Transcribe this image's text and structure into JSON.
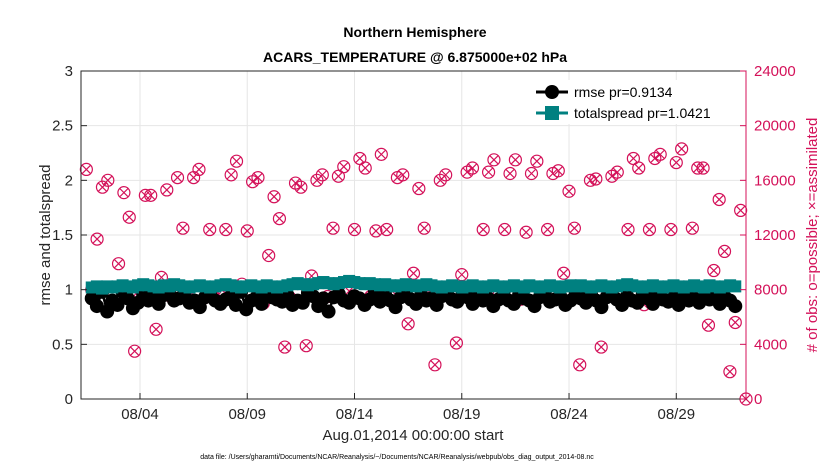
{
  "chart_data": {
    "type": "line",
    "title_line1": "Northern Hemisphere",
    "title_line2": "ACARS_TEMPERATURE @ 6.875000e+02 hPa",
    "xlabel": "Aug.01,2014 00:00:00 start",
    "ylabel_left": "rmse and totalspread",
    "ylabel_right": "# of obs: o=possible; ×=assimilated",
    "footnote": "data file: /Users/gharamti/Documents/NCAR/Reanalysis/~/Documents/NCAR/Reanalysis/webpub/obs_diag_output_2014-08.nc",
    "x_ticks": [
      "08/04",
      "08/09",
      "08/14",
      "08/19",
      "08/24",
      "08/29"
    ],
    "x_tick_days": [
      4,
      9,
      14,
      19,
      24,
      29
    ],
    "xlim": [
      1.25,
      32.25
    ],
    "y_left_ticks": [
      "0",
      "0.5",
      "1",
      "1.5",
      "2",
      "2.5",
      "3"
    ],
    "ylim_left": [
      0,
      3
    ],
    "y_right_ticks": [
      "0",
      "4000",
      "8000",
      "12000",
      "16000",
      "20000",
      "24000"
    ],
    "ylim_right": [
      0,
      24000
    ],
    "legend": [
      {
        "label": "rmse pr=0.9134",
        "color": "#000000",
        "marker": "circle"
      },
      {
        "label": "totalspread pr=1.0421",
        "color": "#008080",
        "marker": "square"
      }
    ],
    "obs_color": "#d41159",
    "series": [
      {
        "name": "rmse",
        "color": "#000000",
        "values": [
          0.92,
          0.85,
          0.98,
          0.8,
          0.9,
          0.86,
          0.98,
          0.92,
          0.83,
          0.88,
          0.95,
          0.9,
          0.93,
          0.87,
          0.95,
          0.97,
          0.9,
          0.92,
          0.96,
          0.88,
          0.9,
          0.84,
          0.93,
          0.95,
          0.9,
          0.87,
          0.91,
          0.94,
          0.86,
          0.98,
          0.82,
          0.9,
          0.93,
          0.87,
          0.97,
          0.93,
          0.91,
          0.89,
          0.95,
          0.86,
          0.9,
          0.88,
          0.97,
          0.94,
          0.85,
          0.92,
          0.8,
          0.93,
          0.96,
          0.9,
          0.88,
          0.94,
          0.92,
          0.86,
          0.91,
          0.99,
          0.89,
          0.95,
          0.9,
          0.84,
          0.93,
          0.97,
          0.91,
          0.87,
          0.95,
          0.9,
          0.92,
          0.86,
          0.94,
          0.98,
          0.91,
          0.89,
          0.95,
          0.93,
          0.87,
          0.96,
          0.9,
          0.92,
          0.85,
          0.91,
          0.98,
          0.9,
          0.87,
          0.95,
          0.92,
          0.9,
          0.85,
          0.93,
          0.97,
          0.89,
          0.91,
          0.94,
          0.86,
          0.9,
          0.96,
          0.92,
          0.88,
          0.95,
          0.9,
          0.84,
          0.93,
          0.97,
          0.91,
          0.86,
          0.94,
          0.9,
          0.88,
          0.95,
          0.92,
          0.87,
          0.96,
          0.91,
          0.89,
          0.93,
          0.86,
          0.97,
          0.9,
          0.92,
          0.88,
          0.94,
          0.91,
          0.98,
          0.87,
          0.93,
          0.9,
          0.85
        ]
      },
      {
        "name": "totalspread",
        "color": "#008080",
        "values": [
          1.02,
          1.03,
          1.01,
          1.03,
          1.02,
          1.03,
          1.04,
          1.03,
          1.02,
          1.04,
          1.05,
          1.04,
          1.03,
          1.02,
          1.04,
          1.03,
          1.05,
          1.04,
          1.03,
          1.02,
          1.03,
          1.04,
          1.03,
          1.02,
          1.03,
          1.04,
          1.05,
          1.04,
          1.03,
          1.02,
          1.03,
          1.04,
          1.03,
          1.02,
          1.04,
          1.03,
          1.02,
          1.03,
          1.04,
          1.05,
          1.06,
          1.05,
          1.04,
          1.05,
          1.06,
          1.07,
          1.06,
          1.05,
          1.06,
          1.07,
          1.08,
          1.07,
          1.06,
          1.05,
          1.06,
          1.05,
          1.04,
          1.05,
          1.04,
          1.03,
          1.04,
          1.05,
          1.04,
          1.03,
          1.04,
          1.05,
          1.04,
          1.03,
          1.02,
          1.03,
          1.04,
          1.03,
          1.02,
          1.03,
          1.04,
          1.03,
          1.02,
          1.03,
          1.04,
          1.03,
          1.02,
          1.03,
          1.04,
          1.03,
          1.02,
          1.04,
          1.03,
          1.02,
          1.03,
          1.04,
          1.03,
          1.02,
          1.03,
          1.04,
          1.03,
          1.04,
          1.03,
          1.02,
          1.03,
          1.04,
          1.03,
          1.02,
          1.03,
          1.04,
          1.05,
          1.04,
          1.03,
          1.02,
          1.03,
          1.04,
          1.03,
          1.02,
          1.03,
          1.04,
          1.03,
          1.02,
          1.03,
          1.04,
          1.03,
          1.02,
          1.04,
          1.03,
          1.02,
          1.03,
          1.04,
          1.03
        ]
      },
      {
        "name": "obs_count",
        "axis": "right",
        "points": [
          [
            1.5,
            16800
          ],
          [
            1.75,
            8000
          ],
          [
            2.0,
            11700
          ],
          [
            2.25,
            15500
          ],
          [
            2.5,
            16000
          ],
          [
            2.75,
            7000
          ],
          [
            3.0,
            9900
          ],
          [
            3.25,
            15100
          ],
          [
            3.5,
            13300
          ],
          [
            3.75,
            3500
          ],
          [
            4.0,
            7400
          ],
          [
            4.25,
            14900
          ],
          [
            4.5,
            14900
          ],
          [
            4.75,
            5100
          ],
          [
            5.0,
            8900
          ],
          [
            5.25,
            15300
          ],
          [
            5.5,
            7400
          ],
          [
            5.75,
            16200
          ],
          [
            6.0,
            12500
          ],
          [
            6.25,
            8000
          ],
          [
            6.5,
            16200
          ],
          [
            6.75,
            16800
          ],
          [
            7.0,
            7400
          ],
          [
            7.25,
            12400
          ],
          [
            7.5,
            8000
          ],
          [
            7.75,
            7500
          ],
          [
            8.0,
            12400
          ],
          [
            8.25,
            16400
          ],
          [
            8.5,
            17400
          ],
          [
            8.75,
            8400
          ],
          [
            9.0,
            12300
          ],
          [
            9.25,
            15900
          ],
          [
            9.5,
            16200
          ],
          [
            9.75,
            7000
          ],
          [
            10.0,
            10500
          ],
          [
            10.25,
            14800
          ],
          [
            10.5,
            13200
          ],
          [
            10.75,
            3800
          ],
          [
            11.0,
            7400
          ],
          [
            11.25,
            15800
          ],
          [
            11.5,
            15500
          ],
          [
            11.75,
            3900
          ],
          [
            12.0,
            9000
          ],
          [
            12.25,
            16000
          ],
          [
            12.5,
            16400
          ],
          [
            12.75,
            7500
          ],
          [
            13.0,
            12500
          ],
          [
            13.25,
            16300
          ],
          [
            13.5,
            17000
          ],
          [
            13.75,
            7900
          ],
          [
            14.0,
            12400
          ],
          [
            14.25,
            17600
          ],
          [
            14.5,
            16900
          ],
          [
            14.75,
            7500
          ],
          [
            15.0,
            12300
          ],
          [
            15.25,
            17900
          ],
          [
            15.5,
            12400
          ],
          [
            15.75,
            7900
          ],
          [
            16.0,
            16200
          ],
          [
            16.25,
            16400
          ],
          [
            16.5,
            5500
          ],
          [
            16.75,
            9200
          ],
          [
            17.0,
            15400
          ],
          [
            17.25,
            12500
          ],
          [
            17.5,
            7400
          ],
          [
            17.75,
            2500
          ],
          [
            18.0,
            16000
          ],
          [
            18.25,
            16400
          ],
          [
            18.5,
            7900
          ],
          [
            18.75,
            4100
          ],
          [
            19.0,
            9100
          ],
          [
            19.25,
            16600
          ],
          [
            19.5,
            16900
          ],
          [
            19.75,
            7600
          ],
          [
            20.0,
            12400
          ],
          [
            20.25,
            16600
          ],
          [
            20.5,
            17500
          ],
          [
            20.75,
            7700
          ],
          [
            21.0,
            12400
          ],
          [
            21.25,
            16500
          ],
          [
            21.5,
            17500
          ],
          [
            21.75,
            7300
          ],
          [
            22.0,
            12200
          ],
          [
            22.25,
            16500
          ],
          [
            22.5,
            17400
          ],
          [
            22.75,
            7900
          ],
          [
            23.0,
            12400
          ],
          [
            23.25,
            16500
          ],
          [
            23.5,
            16700
          ],
          [
            23.75,
            9200
          ],
          [
            24.0,
            15200
          ],
          [
            24.25,
            12500
          ],
          [
            24.5,
            2500
          ],
          [
            24.75,
            8000
          ],
          [
            25.0,
            16000
          ],
          [
            25.25,
            16100
          ],
          [
            25.5,
            3800
          ],
          [
            25.75,
            7500
          ],
          [
            26.0,
            16300
          ],
          [
            26.25,
            16600
          ],
          [
            26.5,
            7000
          ],
          [
            26.75,
            12400
          ],
          [
            27.0,
            17600
          ],
          [
            27.25,
            16900
          ],
          [
            27.5,
            6900
          ],
          [
            27.75,
            12400
          ],
          [
            28.0,
            17600
          ],
          [
            28.25,
            17900
          ],
          [
            28.5,
            8000
          ],
          [
            28.75,
            12400
          ],
          [
            29.0,
            17300
          ],
          [
            29.25,
            18300
          ],
          [
            29.5,
            7500
          ],
          [
            29.75,
            12500
          ],
          [
            30.0,
            16900
          ],
          [
            30.25,
            16900
          ],
          [
            30.5,
            5400
          ],
          [
            30.75,
            9400
          ],
          [
            31.0,
            14600
          ],
          [
            31.25,
            10800
          ],
          [
            31.5,
            2000
          ],
          [
            31.75,
            5600
          ],
          [
            32.0,
            13800
          ],
          [
            32.25,
            0
          ]
        ]
      }
    ]
  }
}
